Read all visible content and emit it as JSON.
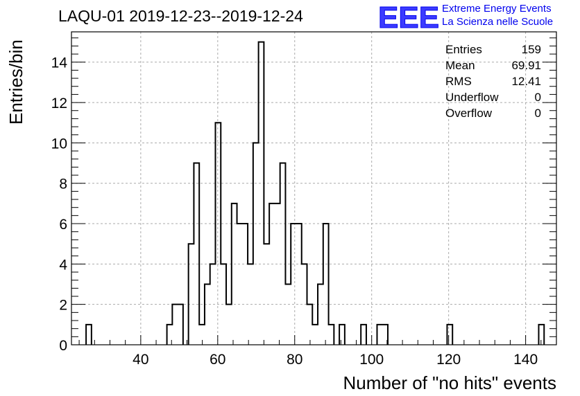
{
  "chart_data": {
    "type": "histogram",
    "title": "LAQU-01 2019-12-23--2019-12-24",
    "xlabel": "Number of \"no hits\" events",
    "ylabel": "Entries/bin",
    "xlim": [
      22,
      148
    ],
    "ylim": [
      0,
      15.5
    ],
    "bin_width": 1.4,
    "grid": true,
    "x_ticks": [
      40,
      60,
      80,
      100,
      120,
      140
    ],
    "y_ticks": [
      0,
      2,
      4,
      6,
      8,
      10,
      12,
      14
    ],
    "bins": [
      {
        "x": 26.5,
        "value": 1
      },
      {
        "x": 47.5,
        "value": 1
      },
      {
        "x": 48.9,
        "value": 2
      },
      {
        "x": 50.3,
        "value": 2
      },
      {
        "x": 53.1,
        "value": 5
      },
      {
        "x": 54.5,
        "value": 9
      },
      {
        "x": 55.9,
        "value": 1
      },
      {
        "x": 57.3,
        "value": 3
      },
      {
        "x": 58.7,
        "value": 4
      },
      {
        "x": 60.1,
        "value": 11
      },
      {
        "x": 61.5,
        "value": 4
      },
      {
        "x": 62.9,
        "value": 2
      },
      {
        "x": 64.3,
        "value": 7
      },
      {
        "x": 65.7,
        "value": 6
      },
      {
        "x": 67.1,
        "value": 6
      },
      {
        "x": 68.5,
        "value": 4
      },
      {
        "x": 69.9,
        "value": 10
      },
      {
        "x": 71.3,
        "value": 15
      },
      {
        "x": 72.7,
        "value": 5
      },
      {
        "x": 74.1,
        "value": 7
      },
      {
        "x": 75.5,
        "value": 7
      },
      {
        "x": 76.9,
        "value": 9
      },
      {
        "x": 78.3,
        "value": 3
      },
      {
        "x": 79.7,
        "value": 6
      },
      {
        "x": 81.1,
        "value": 6
      },
      {
        "x": 82.5,
        "value": 4
      },
      {
        "x": 83.9,
        "value": 2
      },
      {
        "x": 85.3,
        "value": 1
      },
      {
        "x": 86.7,
        "value": 3
      },
      {
        "x": 88.1,
        "value": 6
      },
      {
        "x": 89.5,
        "value": 1
      },
      {
        "x": 92.3,
        "value": 1
      },
      {
        "x": 97.9,
        "value": 1
      },
      {
        "x": 102.1,
        "value": 1
      },
      {
        "x": 103.5,
        "value": 1
      },
      {
        "x": 120.3,
        "value": 1
      },
      {
        "x": 144.1,
        "value": 1
      }
    ],
    "line_color": "#000000"
  },
  "stats": [
    {
      "label": "Entries",
      "value": "159"
    },
    {
      "label": "Mean",
      "value": "69.91"
    },
    {
      "label": "RMS",
      "value": "12.41"
    },
    {
      "label": "Underflow",
      "value": "0"
    },
    {
      "label": "Overflow",
      "value": "0"
    }
  ],
  "logo": {
    "text": "EEE",
    "line1": "Extreme Energy Events",
    "line2": "La Scienza nelle Scuole",
    "color": "#0000ee"
  }
}
